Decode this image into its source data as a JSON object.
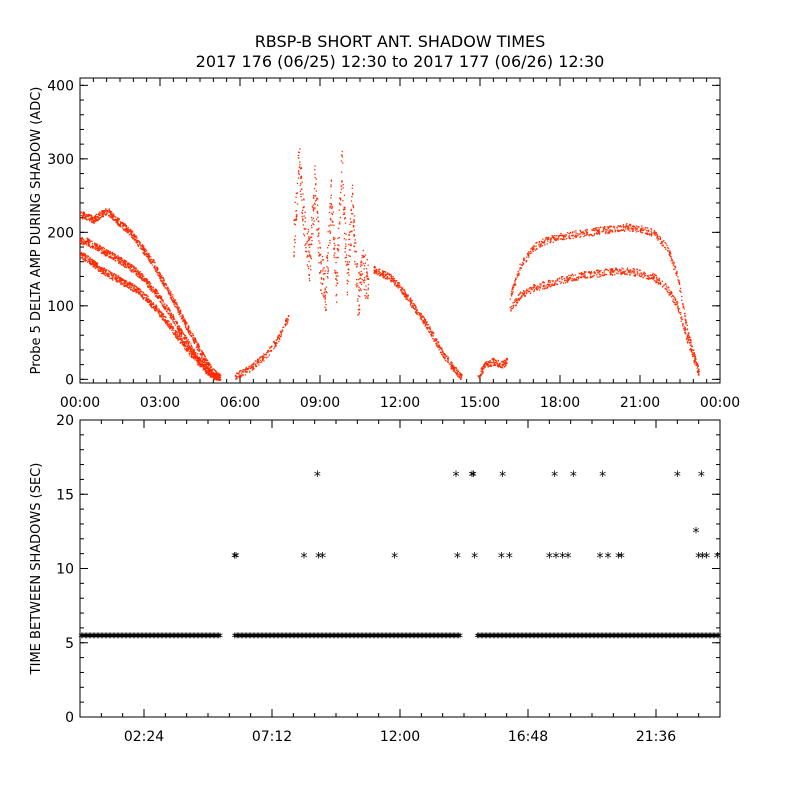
{
  "title_line1": "RBSP-B SHORT ANT. SHADOW TIMES",
  "title_line2": "2017 176 (06/25) 12:30 to 2017 177 (06/26) 12:30",
  "colors": {
    "top_points": "#ff2a00",
    "bottom_points": "#000000",
    "axes": "#000000"
  },
  "chart_data": [
    {
      "type": "scatter",
      "ylabel": "Probe 5 DELTA AMP DURING SHADOW (ADC)",
      "xlim": [
        0,
        24
      ],
      "ylim": [
        -5,
        410
      ],
      "x_unit": "hours",
      "xticks": [
        0,
        3,
        6,
        9,
        12,
        15,
        18,
        21,
        24
      ],
      "xtick_labels": [
        "00:00",
        "03:00",
        "06:00",
        "09:00",
        "12:00",
        "15:00",
        "18:00",
        "21:00",
        "00:00"
      ],
      "yticks": [
        0,
        100,
        200,
        300,
        400
      ],
      "ytick_labels": [
        "0",
        "100",
        "200",
        "300",
        "400"
      ],
      "marker": "dot",
      "color": "#ff2a00",
      "series": [
        {
          "x": [
            0.0,
            0.25,
            0.5,
            0.75,
            1.0,
            1.25,
            1.5,
            1.75,
            2.0,
            2.25,
            2.5,
            2.75,
            3.0,
            3.25,
            3.5,
            3.75,
            4.0,
            4.25,
            4.5,
            4.75,
            5.0,
            5.25
          ],
          "values": [
            225,
            222,
            218,
            225,
            230,
            222,
            212,
            205,
            195,
            182,
            170,
            158,
            140,
            125,
            108,
            90,
            72,
            55,
            38,
            22,
            10,
            2
          ]
        },
        {
          "x": [
            0.0,
            0.25,
            0.5,
            0.75,
            1.0,
            1.25,
            1.5,
            1.75,
            2.0,
            2.25,
            2.5,
            2.75,
            3.0,
            3.25,
            3.5,
            3.75,
            4.0,
            4.25,
            4.5,
            4.75,
            5.0,
            5.25
          ],
          "values": [
            190,
            188,
            182,
            178,
            172,
            168,
            162,
            156,
            150,
            142,
            132,
            122,
            110,
            96,
            82,
            66,
            52,
            38,
            25,
            14,
            6,
            1
          ]
        },
        {
          "x": [
            0.0,
            0.25,
            0.5,
            0.75,
            1.0,
            1.25,
            1.5,
            1.75,
            2.0,
            2.25,
            2.5,
            2.75,
            3.0,
            3.25,
            3.5,
            3.75,
            4.0,
            4.25,
            4.5,
            4.75,
            5.0,
            5.25
          ],
          "values": [
            170,
            165,
            158,
            150,
            145,
            140,
            135,
            130,
            125,
            118,
            110,
            100,
            90,
            78,
            66,
            54,
            42,
            32,
            22,
            12,
            5,
            1
          ]
        },
        {
          "x": [
            5.8,
            6.2,
            6.6,
            7.0,
            7.4,
            7.8
          ],
          "values": [
            5,
            12,
            22,
            35,
            55,
            85
          ]
        },
        {
          "x": [
            8.0,
            8.2,
            8.4,
            8.6,
            8.8,
            9.0,
            9.2,
            9.4,
            9.6,
            9.8,
            10.0,
            10.2,
            10.4,
            10.6,
            10.8
          ],
          "values": [
            190,
            300,
            210,
            160,
            270,
            150,
            120,
            250,
            130,
            290,
            140,
            240,
            110,
            150,
            130
          ]
        },
        {
          "x": [
            11.0,
            11.3,
            11.6,
            11.9,
            12.2,
            12.5,
            12.8,
            13.1,
            13.4,
            13.7,
            14.0,
            14.3
          ],
          "values": [
            150,
            145,
            140,
            130,
            115,
            100,
            85,
            68,
            48,
            30,
            15,
            3
          ]
        },
        {
          "x": [
            14.9,
            15.2,
            15.5,
            15.8,
            16.0
          ],
          "values": [
            5,
            20,
            25,
            20,
            25
          ]
        },
        {
          "x": [
            16.1,
            16.5,
            17.0,
            17.5,
            18.0,
            18.5,
            19.0,
            19.5,
            20.0,
            20.5,
            21.0,
            21.5,
            22.0,
            22.4,
            22.8,
            23.2
          ],
          "values": [
            110,
            155,
            180,
            190,
            195,
            198,
            200,
            203,
            205,
            208,
            205,
            200,
            180,
            140,
            60,
            10
          ]
        },
        {
          "x": [
            16.1,
            16.5,
            17.0,
            17.5,
            18.0,
            18.5,
            19.0,
            19.5,
            20.0,
            20.5,
            21.0,
            21.5,
            22.0,
            22.4,
            22.8,
            23.2
          ],
          "values": [
            95,
            115,
            125,
            130,
            135,
            140,
            143,
            145,
            148,
            148,
            145,
            140,
            125,
            100,
            50,
            8
          ]
        }
      ]
    },
    {
      "type": "scatter",
      "ylabel": "TIME BETWEEN SHADOWS (SEC)",
      "xlim": [
        0,
        24
      ],
      "ylim": [
        0,
        20
      ],
      "x_unit": "hours",
      "xticks": [
        2.4,
        7.2,
        12.0,
        16.8,
        21.6
      ],
      "xtick_labels": [
        "02:24",
        "07:12",
        "12:00",
        "16:48",
        "21:36"
      ],
      "yticks": [
        0,
        5,
        10,
        15,
        20
      ],
      "ytick_labels": [
        "0",
        "5",
        "10",
        "15",
        "20"
      ],
      "marker": "asterisk",
      "color": "#000000",
      "baseline": {
        "value": 5.5,
        "x_start": 0.05,
        "x_end": 24.0,
        "gaps": [
          [
            5.25,
            5.75
          ],
          [
            14.3,
            14.9
          ]
        ]
      },
      "points": {
        "x": [
          5.8,
          5.85,
          8.4,
          8.9,
          8.95,
          9.1,
          11.8,
          14.1,
          14.15,
          14.7,
          14.8,
          14.75,
          15.8,
          15.85,
          16.1,
          17.6,
          17.8,
          17.85,
          18.1,
          18.3,
          18.5,
          19.5,
          19.6,
          19.8,
          20.2,
          20.3,
          22.4,
          23.1,
          23.3,
          23.35,
          23.2,
          23.5,
          23.9
        ],
        "values": [
          10.8,
          10.8,
          10.8,
          16.3,
          10.8,
          10.8,
          10.8,
          16.3,
          10.8,
          16.3,
          10.8,
          16.3,
          10.8,
          16.3,
          10.8,
          10.8,
          16.3,
          10.8,
          10.8,
          10.8,
          16.3,
          10.8,
          16.3,
          10.8,
          10.8,
          10.8,
          16.3,
          12.5,
          16.3,
          10.8,
          10.8,
          10.8,
          10.8
        ]
      }
    }
  ]
}
